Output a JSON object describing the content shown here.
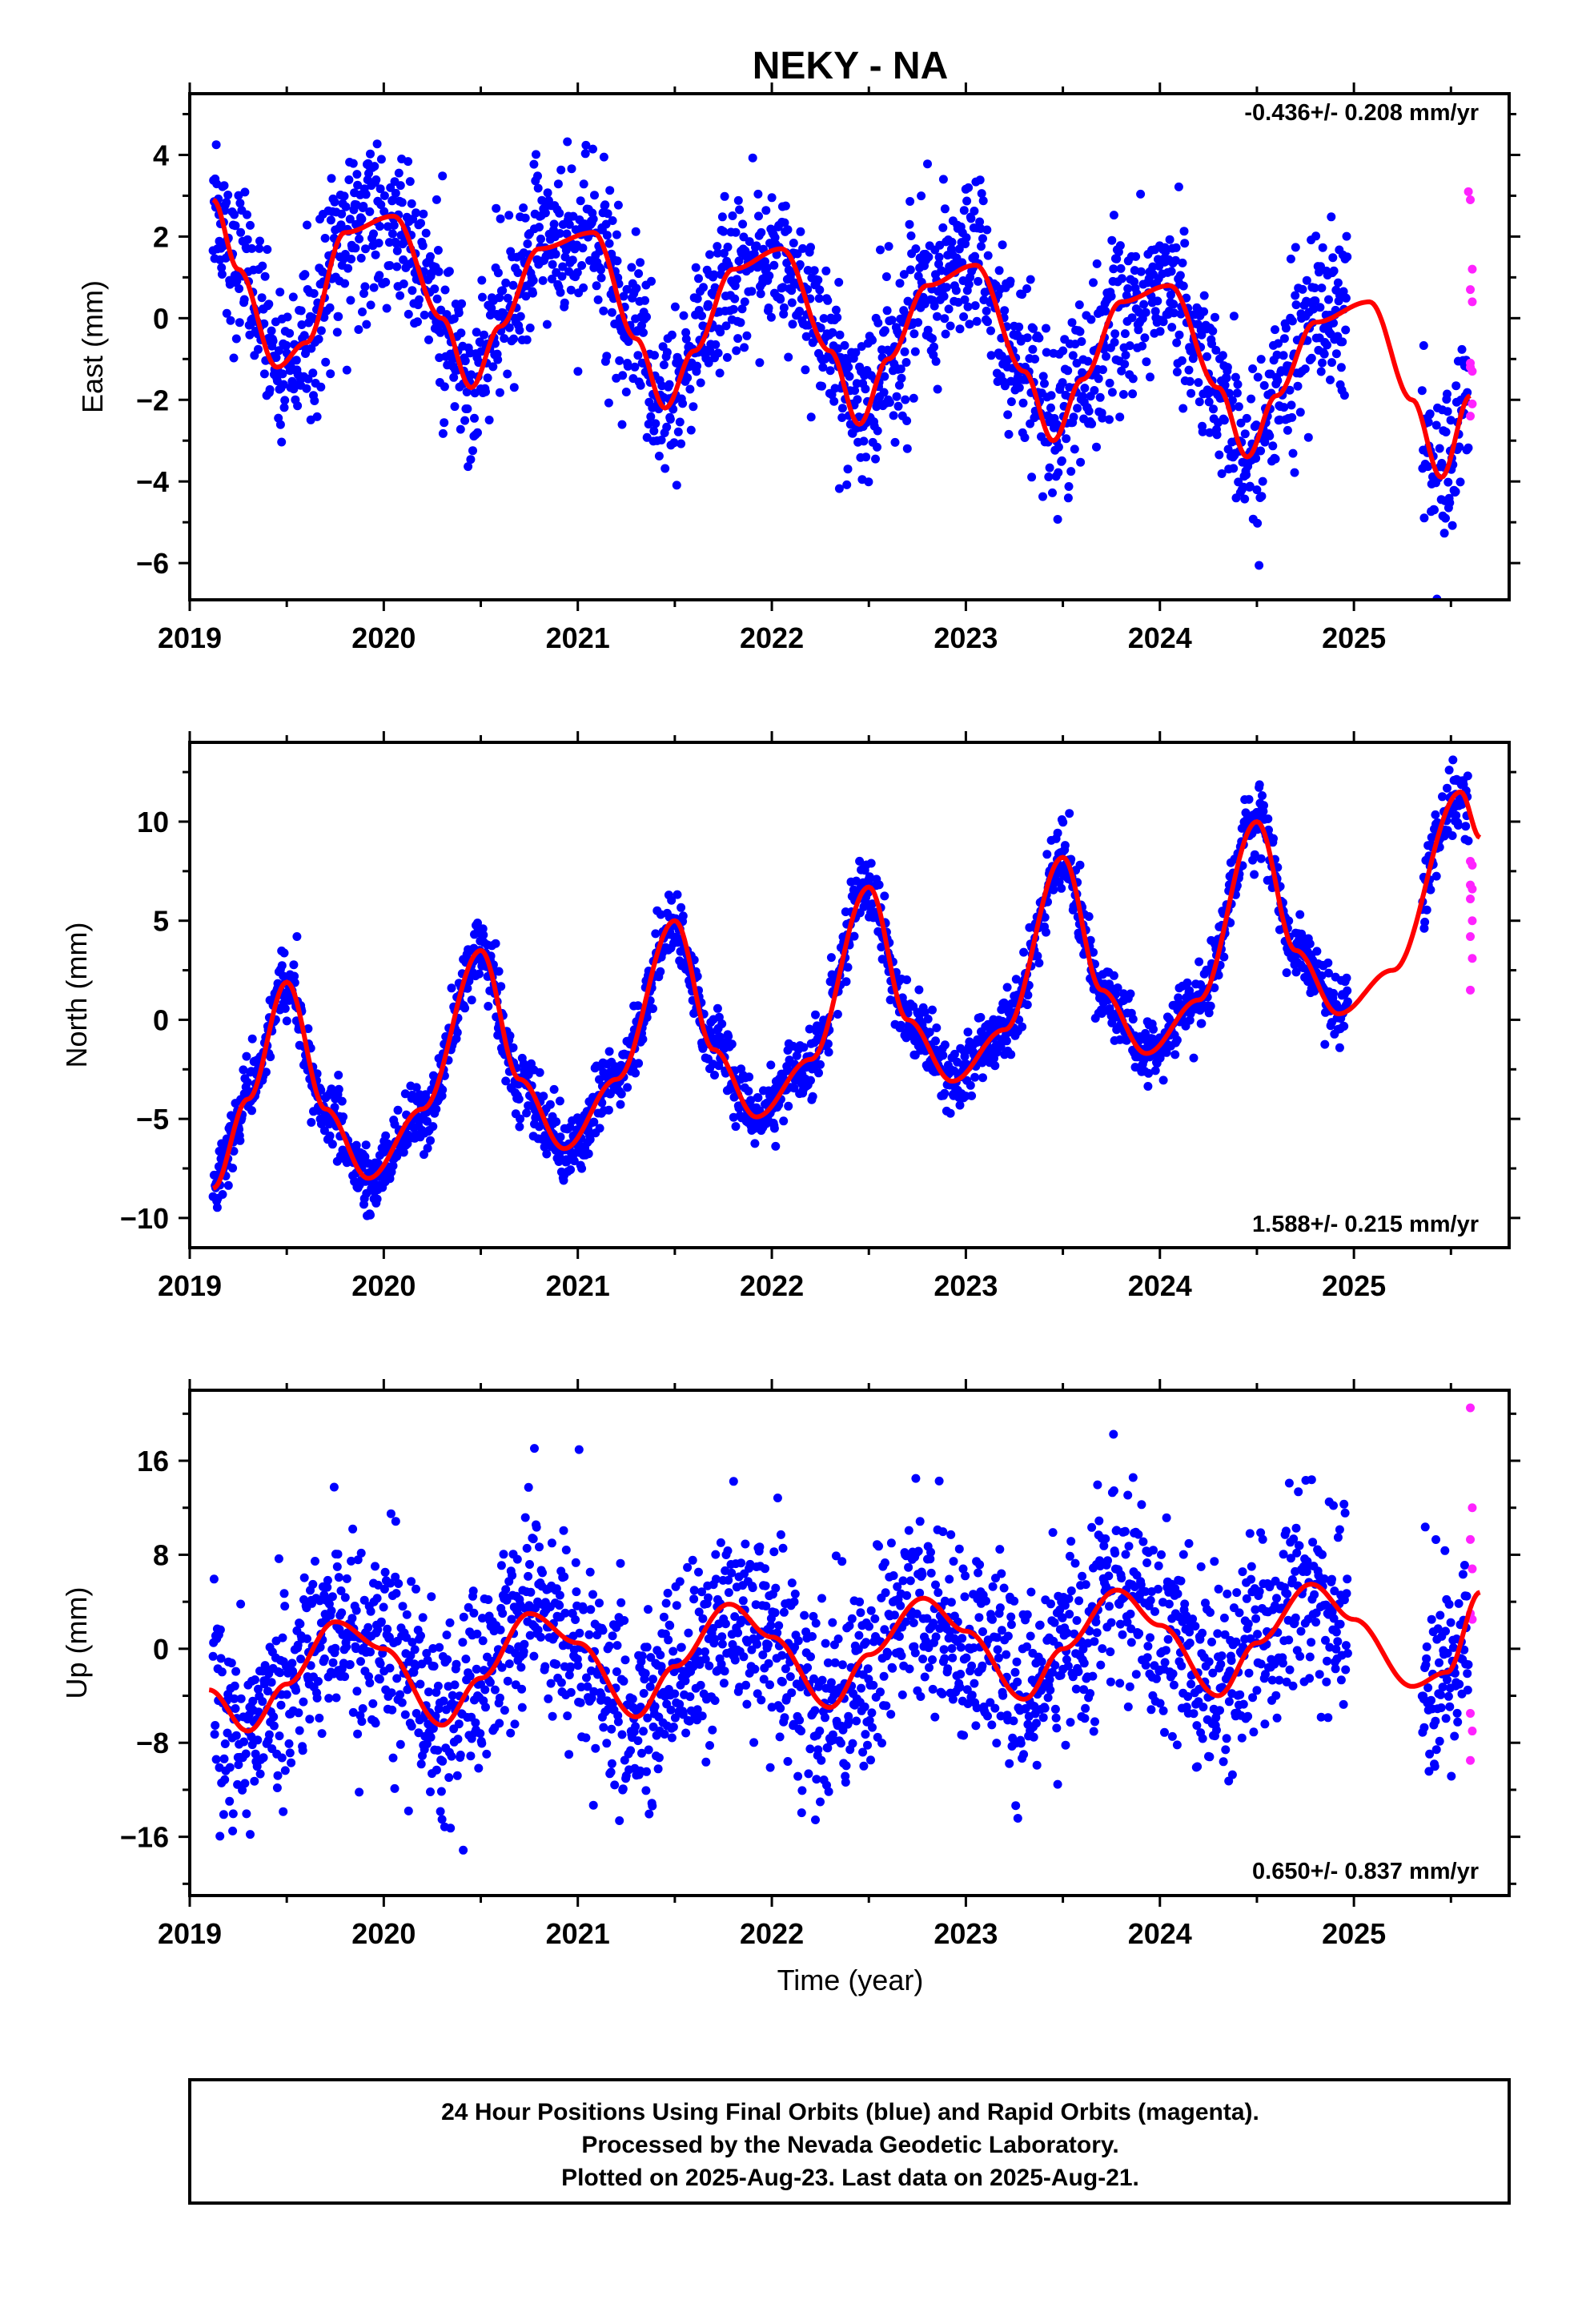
{
  "title": "NEKY - NA",
  "xlabel": "Time (year)",
  "colors": {
    "final": "#0000ff",
    "rapid": "#ff22ff",
    "model": "#ff0000",
    "frame": "#000000"
  },
  "footer": {
    "line1": "24 Hour Positions Using Final Orbits (blue) and Rapid Orbits (magenta).",
    "line2": "Processed by the Nevada Geodetic Laboratory.",
    "line3": "Plotted on 2025-Aug-23. Last data on 2025-Aug-21."
  },
  "chart_data": [
    {
      "type": "scatter",
      "ylabel": "East (mm)",
      "rate_label": "-0.436+/- 0.208 mm/yr",
      "xlim": [
        2019.0,
        2025.8
      ],
      "ylim": [
        -6.9,
        5.5
      ],
      "xticks": [
        "2019",
        "2020",
        "2021",
        "2022",
        "2023",
        "2024",
        "2025"
      ],
      "yticks": [
        -6,
        -4,
        -2,
        0,
        2,
        4
      ],
      "grid": false,
      "model_curve": {
        "x": [
          2019.12,
          2019.25,
          2019.45,
          2019.6,
          2019.8,
          2020.05,
          2020.3,
          2020.45,
          2020.6,
          2020.8,
          2021.08,
          2021.3,
          2021.45,
          2021.6,
          2021.8,
          2022.05,
          2022.3,
          2022.45,
          2022.6,
          2022.8,
          2023.05,
          2023.3,
          2023.45,
          2023.6,
          2023.8,
          2024.05,
          2024.3,
          2024.45,
          2024.6,
          2024.8,
          2025.08,
          2025.3,
          2025.45,
          2025.6
        ],
        "y": [
          2.9,
          1.2,
          -1.2,
          -0.6,
          2.1,
          2.5,
          0.0,
          -1.7,
          -0.2,
          1.7,
          2.1,
          -0.5,
          -2.2,
          -0.8,
          1.2,
          1.7,
          -0.8,
          -2.6,
          -1.0,
          0.8,
          1.3,
          -1.3,
          -3.0,
          -1.5,
          0.4,
          0.8,
          -1.7,
          -3.4,
          -1.9,
          -0.1,
          0.4,
          -2.0,
          -3.9,
          -1.9
        ]
      },
      "series": [
        {
          "name": "Final Orbits",
          "points": "approx. 2300 daily positions, 2019.1–2025.6, oscillating about the model curve with ~1 mm scatter"
        },
        {
          "name": "Rapid Orbits",
          "x": [
            2025.59,
            2025.6,
            2025.61,
            2025.6,
            2025.61,
            2025.6,
            2025.61,
            2025.6,
            2025.61,
            2025.6
          ],
          "y": [
            3.1,
            2.9,
            1.2,
            0.7,
            0.4,
            -1.1,
            -1.3,
            -1.2,
            -2.1,
            -2.4
          ]
        }
      ]
    },
    {
      "type": "scatter",
      "ylabel": "North (mm)",
      "rate_label": "1.588+/- 0.215 mm/yr",
      "xlim": [
        2019.0,
        2025.8
      ],
      "ylim": [
        -11.5,
        14.0
      ],
      "xticks": [
        "2019",
        "2020",
        "2021",
        "2022",
        "2023",
        "2024",
        "2025"
      ],
      "yticks": [
        -10,
        -5,
        0,
        5,
        10
      ],
      "grid": false,
      "model_curve": {
        "x": [
          2019.12,
          2019.3,
          2019.5,
          2019.7,
          2019.92,
          2020.2,
          2020.5,
          2020.7,
          2020.93,
          2021.2,
          2021.5,
          2021.7,
          2021.92,
          2022.2,
          2022.5,
          2022.7,
          2022.93,
          2023.2,
          2023.5,
          2023.7,
          2023.93,
          2024.2,
          2024.5,
          2024.7,
          2024.92,
          2025.2,
          2025.55,
          2025.65
        ],
        "y": [
          -8.5,
          -4.0,
          1.9,
          -4.5,
          -8.0,
          -4.5,
          3.5,
          -3.0,
          -6.5,
          -3.0,
          5.0,
          -1.5,
          -4.9,
          -2.0,
          6.7,
          0.0,
          -3.1,
          -0.5,
          8.2,
          1.5,
          -1.7,
          1.0,
          10.0,
          3.5,
          0.3,
          2.5,
          11.5,
          9.2
        ]
      },
      "series": [
        {
          "name": "Final Orbits",
          "points": "approx. 2300 daily positions, 2019.1–2025.6, tightly following the model curve with ~0.8 mm scatter"
        },
        {
          "name": "Rapid Orbits",
          "x": [
            2025.6,
            2025.61,
            2025.6,
            2025.61,
            2025.6,
            2025.61,
            2025.6,
            2025.61,
            2025.6
          ],
          "y": [
            8.0,
            7.8,
            6.8,
            6.6,
            6.1,
            5.0,
            4.2,
            3.1,
            1.5
          ]
        }
      ]
    },
    {
      "type": "scatter",
      "ylabel": "Up (mm)",
      "rate_label": "0.650+/- 0.837 mm/yr",
      "xlim": [
        2019.0,
        2025.8
      ],
      "ylim": [
        -21.0,
        22.0
      ],
      "xticks": [
        "2019",
        "2020",
        "2021",
        "2022",
        "2023",
        "2024",
        "2025"
      ],
      "yticks": [
        -16,
        -8,
        0,
        8,
        16
      ],
      "grid": false,
      "model_curve": {
        "x": [
          2019.1,
          2019.3,
          2019.5,
          2019.75,
          2020.0,
          2020.3,
          2020.5,
          2020.75,
          2021.0,
          2021.3,
          2021.5,
          2021.78,
          2022.0,
          2022.3,
          2022.5,
          2022.78,
          2023.0,
          2023.3,
          2023.5,
          2023.78,
          2024.0,
          2024.3,
          2024.5,
          2024.78,
          2025.0,
          2025.3,
          2025.48,
          2025.65
        ],
        "y": [
          -3.5,
          -7.0,
          -3.0,
          2.3,
          0.0,
          -6.5,
          -2.5,
          3.0,
          0.5,
          -5.8,
          -1.5,
          3.8,
          1.0,
          -5.0,
          -0.5,
          4.3,
          1.5,
          -4.3,
          0.0,
          5.0,
          2.0,
          -4.0,
          0.5,
          5.5,
          2.5,
          -3.2,
          -2.0,
          4.8
        ]
      },
      "series": [
        {
          "name": "Final Orbits",
          "points": "approx. 2300 daily positions, 2019.1–2025.6, scattered about the model curve with ~4 mm spread"
        },
        {
          "name": "Rapid Orbits",
          "x": [
            2025.6,
            2025.61,
            2025.6,
            2025.61,
            2025.6,
            2025.61,
            2025.6,
            2025.61,
            2025.6
          ],
          "y": [
            20.5,
            12.0,
            9.3,
            6.8,
            3.0,
            2.5,
            -5.5,
            -7.0,
            -9.5
          ]
        }
      ]
    }
  ]
}
